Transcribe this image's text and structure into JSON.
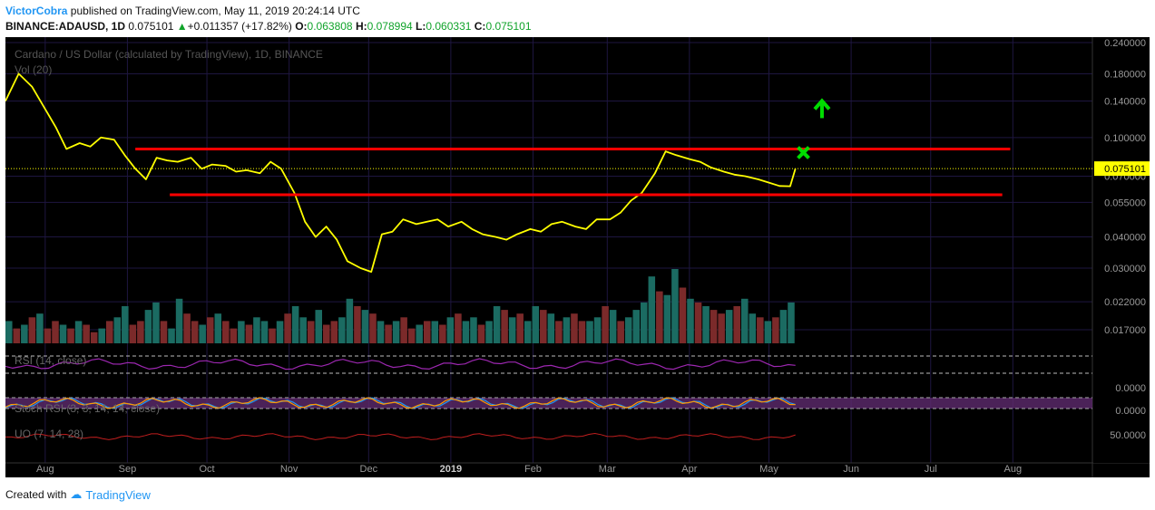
{
  "header": {
    "author": "VictorCobra",
    "published_text": " published on TradingView.com, May 11, 2019 20:24:14 UTC",
    "symbol": "BINANCE:ADAUSD, 1D",
    "last": "0.075101",
    "change_arrow": "▲",
    "change": "+0.011357 (+17.82%)",
    "o_label": "O:",
    "o": "0.063808",
    "h_label": "H:",
    "h": "0.078994",
    "l_label": "L:",
    "l": "0.060331",
    "c_label": "C:",
    "c": "0.075101"
  },
  "chart_data": {
    "type": "line",
    "title": "Cardano / US Dollar (calculated by TradingView), 1D, BINANCE",
    "x_ticks": [
      "Aug",
      "Sep",
      "Oct",
      "Nov",
      "Dec",
      "2019",
      "Feb",
      "Mar",
      "Apr",
      "May",
      "Jun",
      "Jul",
      "Aug"
    ],
    "y_scale": "log",
    "ylim": [
      0.015,
      0.24
    ],
    "y_ticks": [
      0.24,
      0.18,
      0.14,
      0.1,
      0.07,
      0.055,
      0.04,
      0.03,
      0.022,
      0.017
    ],
    "y_tick_labels": [
      "0.240000",
      "0.180000",
      "0.140000",
      "0.100000",
      "0.070000",
      "0.055000",
      "0.040000",
      "0.030000",
      "0.022000",
      "0.017000"
    ],
    "last_price_label": "0.075101",
    "last_price": 0.075101,
    "series": [
      {
        "color": "#ffff00",
        "x": [
          "2018-07-17",
          "2018-07-22",
          "2018-07-27",
          "2018-08-01",
          "2018-08-05",
          "2018-08-09",
          "2018-08-14",
          "2018-08-18",
          "2018-08-22",
          "2018-08-27",
          "2018-08-31",
          "2018-09-04",
          "2018-09-08",
          "2018-09-12",
          "2018-09-16",
          "2018-09-20",
          "2018-09-25",
          "2018-09-29",
          "2018-10-03",
          "2018-10-08",
          "2018-10-12",
          "2018-10-16",
          "2018-10-21",
          "2018-10-25",
          "2018-10-29",
          "2018-11-03",
          "2018-11-07",
          "2018-11-11",
          "2018-11-15",
          "2018-11-19",
          "2018-11-23",
          "2018-11-28",
          "2018-12-02",
          "2018-12-06",
          "2018-12-10",
          "2018-12-14",
          "2018-12-19",
          "2018-12-23",
          "2018-12-27",
          "2018-12-31",
          "2019-01-05",
          "2019-01-09",
          "2019-01-13",
          "2019-01-18",
          "2019-01-22",
          "2019-01-26",
          "2019-01-31",
          "2019-02-04",
          "2019-02-08",
          "2019-02-12",
          "2019-02-17",
          "2019-02-21",
          "2019-02-25",
          "2019-03-02",
          "2019-03-06",
          "2019-03-10",
          "2019-03-14",
          "2019-03-19",
          "2019-03-23",
          "2019-03-27",
          "2019-04-01",
          "2019-04-05",
          "2019-04-09",
          "2019-04-14",
          "2019-04-18",
          "2019-04-22",
          "2019-04-27",
          "2019-05-01",
          "2019-05-05",
          "2019-05-09",
          "2019-05-11"
        ],
        "y": [
          0.14,
          0.18,
          0.16,
          0.13,
          0.11,
          0.09,
          0.095,
          0.092,
          0.1,
          0.098,
          0.085,
          0.075,
          0.068,
          0.083,
          0.081,
          0.08,
          0.083,
          0.075,
          0.078,
          0.077,
          0.073,
          0.074,
          0.072,
          0.08,
          0.075,
          0.06,
          0.046,
          0.04,
          0.044,
          0.039,
          0.032,
          0.03,
          0.029,
          0.041,
          0.042,
          0.047,
          0.045,
          0.046,
          0.047,
          0.044,
          0.046,
          0.043,
          0.041,
          0.04,
          0.039,
          0.041,
          0.043,
          0.042,
          0.045,
          0.046,
          0.044,
          0.043,
          0.047,
          0.047,
          0.05,
          0.056,
          0.06,
          0.072,
          0.088,
          0.085,
          0.082,
          0.08,
          0.076,
          0.073,
          0.071,
          0.07,
          0.068,
          0.066,
          0.064,
          0.0638,
          0.0751
        ]
      }
    ],
    "annotations": [
      {
        "type": "horizontal_line",
        "color": "#ff0000",
        "y": 0.09,
        "from": "2018-09-04",
        "to": "2019-07-31"
      },
      {
        "type": "horizontal_line",
        "color": "#ff0000",
        "y": 0.059,
        "from": "2018-09-17",
        "to": "2019-07-28"
      },
      {
        "type": "x_marker",
        "color": "#00dd00",
        "date": "2019-05-14",
        "y": 0.087
      },
      {
        "type": "up_arrow",
        "color": "#00dd00",
        "date": "2019-05-21",
        "y": 0.13
      }
    ],
    "volume": {
      "label": "Vol (20)",
      "up_color": "#1b6b62",
      "down_color": "#7b2a2a",
      "relative_values": [
        0.3,
        0.2,
        0.25,
        0.35,
        0.4,
        0.2,
        0.3,
        0.25,
        0.2,
        0.3,
        0.25,
        0.15,
        0.2,
        0.3,
        0.35,
        0.5,
        0.25,
        0.3,
        0.45,
        0.55,
        0.3,
        0.2,
        0.6,
        0.4,
        0.3,
        0.25,
        0.35,
        0.4,
        0.3,
        0.2,
        0.3,
        0.25,
        0.35,
        0.3,
        0.2,
        0.3,
        0.4,
        0.5,
        0.35,
        0.3,
        0.45,
        0.25,
        0.3,
        0.35,
        0.6,
        0.5,
        0.45,
        0.4,
        0.3,
        0.25,
        0.3,
        0.35,
        0.2,
        0.25,
        0.3,
        0.3,
        0.25,
        0.35,
        0.4,
        0.3,
        0.35,
        0.25,
        0.3,
        0.5,
        0.45,
        0.35,
        0.4,
        0.3,
        0.5,
        0.45,
        0.4,
        0.3,
        0.35,
        0.4,
        0.3,
        0.3,
        0.35,
        0.5,
        0.45,
        0.3,
        0.35,
        0.45,
        0.55,
        0.9,
        0.7,
        0.65,
        1.0,
        0.75,
        0.6,
        0.55,
        0.5,
        0.45,
        0.4,
        0.45,
        0.5,
        0.6,
        0.4,
        0.35,
        0.3,
        0.35,
        0.45,
        0.55
      ],
      "up_flags": [
        1,
        0,
        1,
        0,
        1,
        0,
        0,
        1,
        0,
        1,
        0,
        0,
        1,
        0,
        1,
        1,
        0,
        0,
        1,
        1,
        0,
        1,
        1,
        0,
        0,
        1,
        0,
        1,
        0,
        0,
        1,
        0,
        1,
        1,
        0,
        1,
        0,
        1,
        1,
        0,
        1,
        0,
        0,
        1,
        1,
        0,
        1,
        0,
        1,
        0,
        1,
        0,
        0,
        1,
        0,
        1,
        0,
        1,
        0,
        1,
        1,
        0,
        1,
        1,
        0,
        1,
        0,
        1,
        1,
        0,
        1,
        0,
        1,
        0,
        0,
        1,
        1,
        0,
        1,
        0,
        1,
        1,
        1,
        1,
        0,
        1,
        1,
        0,
        1,
        0,
        1,
        0,
        0,
        1,
        0,
        1,
        1,
        0,
        1,
        0,
        1,
        1
      ]
    },
    "indicators": [
      {
        "name": "RSI (14, close)",
        "color": "#9c27b0",
        "band_lines": [
          "upper",
          "lower"
        ]
      },
      {
        "name": "Stoch RSI (3, 3, 14, 14, close)",
        "band_color": "#5e2a6e",
        "k_color": "#2196f3",
        "d_color": "#ff9800",
        "axis_labels": [
          "0.0000",
          "0.0000"
        ]
      },
      {
        "name": "UO (7, 14, 28)",
        "color": "#c01e1e",
        "axis_label": "50.0000"
      }
    ]
  },
  "footer": {
    "created_with": "Created with",
    "brand": "TradingView"
  }
}
